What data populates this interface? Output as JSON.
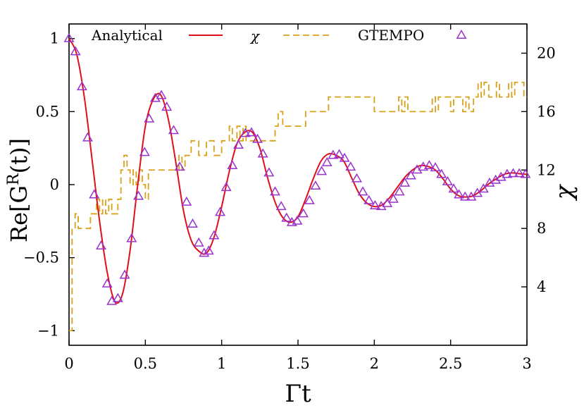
{
  "chart_data": {
    "type": "line",
    "xlabel": "Γt",
    "ylabel": "Re[G^R(t)]",
    "y2label": "χ",
    "xlim": [
      0,
      3
    ],
    "ylim": [
      -1.1,
      1.1
    ],
    "y2lim": [
      0,
      22
    ],
    "x_ticks": [
      0,
      0.5,
      1,
      1.5,
      2,
      2.5,
      3
    ],
    "x_tick_labels": [
      "0",
      "0.5",
      "1",
      "1.5",
      "2",
      "2.5",
      "3"
    ],
    "y_ticks": [
      -1,
      -0.5,
      0,
      0.5,
      1
    ],
    "y_tick_labels": [
      "−1",
      "−0.5",
      "0",
      "0.5",
      "1"
    ],
    "y2_ticks": [
      4,
      8,
      12,
      16,
      20
    ],
    "y2_tick_labels": [
      "4",
      "8",
      "12",
      "16",
      "20"
    ],
    "legend_position": "top",
    "colors": {
      "analytical": "#e0101a",
      "chi": "#d9a11a",
      "gtempo": "#9932cc"
    },
    "series": [
      {
        "name": "Analytical",
        "style": "solid-line",
        "axis": "left",
        "x": [
          0,
          0.05,
          0.1,
          0.15,
          0.2,
          0.25,
          0.3,
          0.35,
          0.4,
          0.45,
          0.5,
          0.55,
          0.6,
          0.65,
          0.7,
          0.75,
          0.8,
          0.85,
          0.9,
          0.95,
          1.0,
          1.05,
          1.1,
          1.15,
          1.2,
          1.25,
          1.3,
          1.35,
          1.4,
          1.45,
          1.5,
          1.55,
          1.6,
          1.65,
          1.7,
          1.75,
          1.8,
          1.85,
          1.9,
          1.95,
          2.0,
          2.05,
          2.1,
          2.15,
          2.2,
          2.25,
          2.3,
          2.35,
          2.4,
          2.45,
          2.5,
          2.55,
          2.6,
          2.65,
          2.7,
          2.75,
          2.8,
          2.85,
          2.9,
          2.95,
          3.0
        ],
        "y": [
          1.0,
          0.894,
          0.6,
          0.18,
          -0.25,
          -0.6,
          -0.8,
          -0.75,
          -0.45,
          0.0,
          0.4,
          0.58,
          0.615,
          0.45,
          0.15,
          -0.18,
          -0.38,
          -0.455,
          -0.47,
          -0.36,
          -0.15,
          0.09,
          0.28,
          0.357,
          0.36,
          0.25,
          0.05,
          -0.12,
          -0.225,
          -0.258,
          -0.22,
          -0.1,
          0.04,
          0.16,
          0.21,
          0.2,
          0.16,
          0.05,
          -0.06,
          -0.125,
          -0.15,
          -0.14,
          -0.09,
          -0.02,
          0.05,
          0.1,
          0.13,
          0.125,
          0.1,
          0.04,
          -0.03,
          -0.075,
          -0.085,
          -0.075,
          -0.04,
          0.005,
          0.04,
          0.07,
          0.08,
          0.075,
          0.07
        ]
      },
      {
        "name": "χ",
        "style": "dashed-line",
        "axis": "right",
        "x": [
          0,
          0.02,
          0.04,
          0.06,
          0.08,
          0.1,
          0.12,
          0.14,
          0.16,
          0.18,
          0.2,
          0.22,
          0.24,
          0.26,
          0.28,
          0.3,
          0.32,
          0.34,
          0.36,
          0.38,
          0.4,
          0.42,
          0.44,
          0.46,
          0.48,
          0.5,
          0.52,
          0.55,
          0.6,
          0.65,
          0.7,
          0.72,
          0.74,
          0.76,
          0.8,
          0.85,
          0.88,
          0.9,
          0.92,
          0.95,
          1.0,
          1.03,
          1.05,
          1.07,
          1.1,
          1.12,
          1.14,
          1.16,
          1.18,
          1.2,
          1.25,
          1.3,
          1.35,
          1.37,
          1.4,
          1.45,
          1.5,
          1.55,
          1.6,
          1.65,
          1.7,
          1.75,
          1.8,
          1.85,
          1.9,
          1.95,
          2.0,
          2.05,
          2.1,
          2.12,
          2.14,
          2.16,
          2.18,
          2.2,
          2.22,
          2.25,
          2.3,
          2.35,
          2.38,
          2.4,
          2.42,
          2.45,
          2.5,
          2.52,
          2.55,
          2.58,
          2.6,
          2.62,
          2.65,
          2.68,
          2.7,
          2.72,
          2.75,
          2.78,
          2.8,
          2.82,
          2.85,
          2.88,
          2.9,
          2.92,
          2.95,
          2.98,
          3.0
        ],
        "y": [
          1,
          8,
          9,
          8,
          8,
          8,
          8,
          9,
          9,
          10,
          9,
          10,
          9,
          10,
          9,
          9,
          10,
          12,
          13,
          12,
          11,
          12,
          11,
          12,
          11,
          10,
          12,
          12,
          12,
          12,
          12,
          13,
          12,
          13,
          14,
          13,
          13,
          14,
          14,
          13,
          14,
          14,
          15,
          14,
          15,
          14,
          15,
          14,
          14,
          14,
          14,
          14,
          15,
          16,
          15,
          15,
          15,
          16,
          16,
          16,
          17,
          17,
          17,
          17,
          17,
          17,
          16,
          16,
          16,
          16,
          16,
          17,
          16,
          17,
          16,
          16,
          16,
          16,
          17,
          16,
          17,
          17,
          16,
          17,
          17,
          16,
          17,
          16,
          17,
          18,
          17,
          18,
          17,
          17,
          18,
          17,
          17,
          18,
          17,
          18,
          18,
          17,
          17
        ]
      },
      {
        "name": "GTEMPO",
        "style": "triangle-markers",
        "axis": "left",
        "x": [
          0.0,
          0.042,
          0.085,
          0.122,
          0.165,
          0.21,
          0.25,
          0.28,
          0.32,
          0.365,
          0.41,
          0.455,
          0.495,
          0.525,
          0.565,
          0.605,
          0.64,
          0.685,
          0.725,
          0.77,
          0.81,
          0.85,
          0.885,
          0.915,
          0.95,
          0.99,
          1.03,
          1.07,
          1.11,
          1.155,
          1.195,
          1.235,
          1.27,
          1.31,
          1.35,
          1.39,
          1.425,
          1.46,
          1.495,
          1.535,
          1.575,
          1.615,
          1.655,
          1.69,
          1.73,
          1.77,
          1.805,
          1.845,
          1.885,
          1.925,
          1.965,
          2.005,
          2.045,
          2.085,
          2.125,
          2.165,
          2.2,
          2.24,
          2.28,
          2.32,
          2.36,
          2.4,
          2.44,
          2.48,
          2.52,
          2.555,
          2.595,
          2.635,
          2.675,
          2.715,
          2.755,
          2.795,
          2.83,
          2.87,
          2.91,
          2.95,
          2.99
        ],
        "y": [
          1.0,
          0.91,
          0.67,
          0.32,
          -0.07,
          -0.42,
          -0.68,
          -0.8,
          -0.78,
          -0.62,
          -0.37,
          -0.08,
          0.22,
          0.45,
          0.59,
          0.61,
          0.53,
          0.37,
          0.12,
          -0.12,
          -0.27,
          -0.4,
          -0.47,
          -0.455,
          -0.35,
          -0.19,
          -0.02,
          0.13,
          0.27,
          0.35,
          0.355,
          0.31,
          0.21,
          0.08,
          -0.05,
          -0.15,
          -0.23,
          -0.26,
          -0.25,
          -0.2,
          -0.11,
          -0.01,
          0.09,
          0.15,
          0.2,
          0.205,
          0.18,
          0.12,
          0.04,
          -0.05,
          -0.11,
          -0.145,
          -0.15,
          -0.13,
          -0.1,
          -0.05,
          0.01,
          0.06,
          0.1,
          0.12,
          0.13,
          0.115,
          0.07,
          0.02,
          -0.03,
          -0.07,
          -0.085,
          -0.085,
          -0.06,
          -0.03,
          0.01,
          0.03,
          0.05,
          0.07,
          0.075,
          0.075,
          0.07
        ]
      }
    ]
  }
}
